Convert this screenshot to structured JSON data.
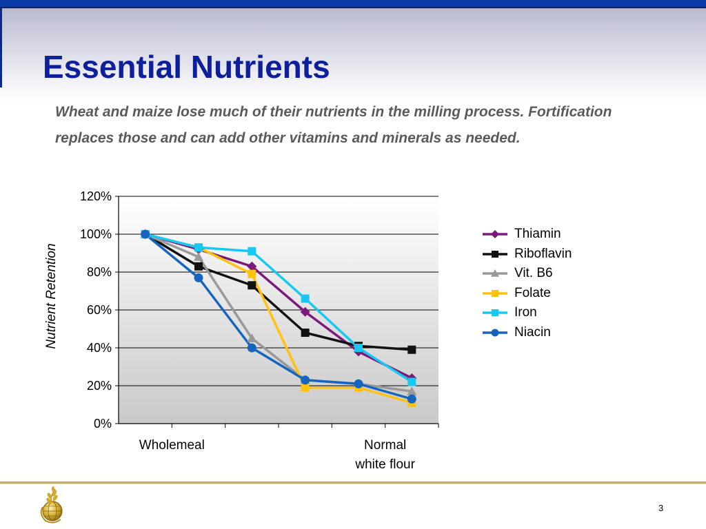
{
  "slide": {
    "title": "Essential Nutrients",
    "subtitle": "Wheat and maize lose much of their nutrients in the milling process. Fortification replaces those and can add other vitamins and minerals as needed.",
    "page_number": "3"
  },
  "colors": {
    "title": "#0d1f9a",
    "top_bar": "#0a3aa8",
    "footer_line": "#c4b062"
  },
  "chart_data": {
    "type": "line",
    "title": "",
    "xlabel": "",
    "ylabel": "Nutrient Retention",
    "ylim": [
      0,
      120
    ],
    "y_ticks": [
      "0%",
      "20%",
      "40%",
      "60%",
      "80%",
      "100%",
      "120%"
    ],
    "categories": [
      "Wholemeal",
      "",
      "",
      "",
      "",
      "Normal white flour"
    ],
    "category_labels": [
      {
        "index": 0.5,
        "lines": [
          "Wholemeal"
        ]
      },
      {
        "index": 4.5,
        "lines": [
          "Normal",
          "white flour"
        ]
      }
    ],
    "grid": true,
    "legend": "right",
    "series": [
      {
        "name": "Thiamin",
        "color": "#7a1a7a",
        "marker": "diamond",
        "values": [
          100,
          92,
          83,
          59,
          38,
          24
        ]
      },
      {
        "name": "Riboflavin",
        "color": "#111111",
        "marker": "square",
        "values": [
          100,
          83,
          73,
          48,
          41,
          39
        ]
      },
      {
        "name": "Vit. B6",
        "color": "#999999",
        "marker": "triangle",
        "values": [
          100,
          88,
          45,
          23,
          21,
          17
        ]
      },
      {
        "name": "Folate",
        "color": "#ffc20e",
        "marker": "square",
        "values": [
          100,
          93,
          79,
          19,
          19,
          11
        ]
      },
      {
        "name": "Iron",
        "color": "#16c8f2",
        "marker": "square",
        "values": [
          100,
          93,
          91,
          66,
          40,
          22
        ]
      },
      {
        "name": "Niacin",
        "color": "#1565c0",
        "marker": "circle",
        "values": [
          100,
          77,
          40,
          23,
          21,
          13
        ]
      }
    ]
  }
}
